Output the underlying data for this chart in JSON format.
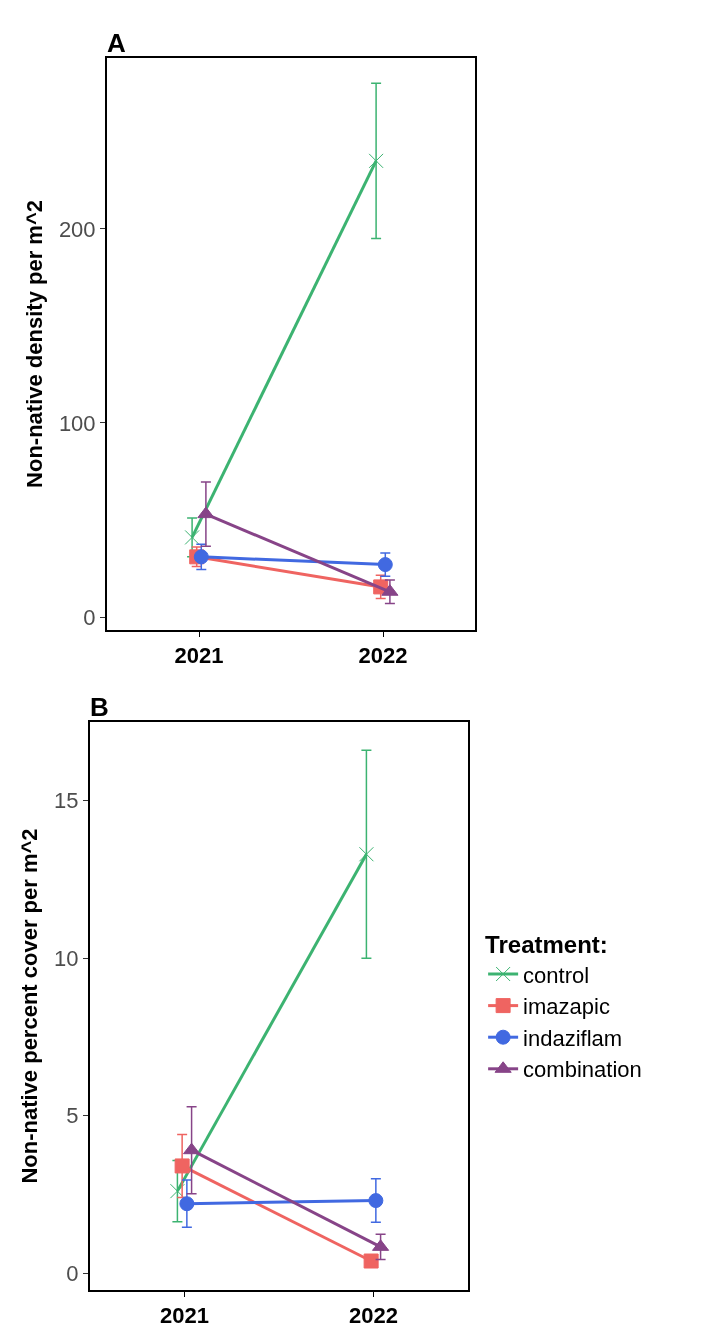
{
  "chart_data": [
    {
      "type": "line",
      "title": "A",
      "ylabel": "Non-native density per m^2",
      "categories": [
        "2021",
        "2022"
      ],
      "ylim": [
        -6.7,
        288
      ],
      "yticks": [
        0,
        100,
        200
      ],
      "legend": false,
      "grid": false,
      "series": [
        {
          "color": "#3cb371",
          "marker": "cross",
          "values": [
            41,
            235
          ],
          "errors": [
            10,
            40
          ]
        },
        {
          "color": "#ef6461",
          "marker": "square",
          "values": [
            31,
            15.5
          ],
          "errors": [
            5,
            6
          ]
        },
        {
          "color": "#4169e1",
          "marker": "circle",
          "values": [
            31,
            27
          ],
          "errors": [
            6.5,
            6
          ]
        },
        {
          "color": "#874488",
          "marker": "triangle",
          "values": [
            53,
            13
          ],
          "errors": [
            16.5,
            6
          ]
        }
      ]
    },
    {
      "type": "line",
      "title": "B",
      "ylabel": "Non-native percent cover per m^2",
      "legend_title": "Treatment:",
      "legend": "right",
      "categories": [
        "2021",
        "2022"
      ],
      "ylim": [
        -0.54,
        17.5
      ],
      "yticks": [
        0,
        5,
        10,
        15
      ],
      "grid": false,
      "series": [
        {
          "name": "control",
          "color": "#3cb371",
          "marker": "cross",
          "values": [
            2.6,
            13.3
          ],
          "errors": [
            0.97,
            3.3
          ]
        },
        {
          "name": "imazapic",
          "color": "#ef6461",
          "marker": "square",
          "values": [
            3.4,
            0.38
          ],
          "errors": [
            1,
            0.05
          ]
        },
        {
          "name": "indaziflam",
          "color": "#4169e1",
          "marker": "circle",
          "values": [
            2.2,
            2.3
          ],
          "errors": [
            0.75,
            0.69
          ]
        },
        {
          "name": "combination",
          "color": "#874488",
          "marker": "triangle",
          "values": [
            3.9,
            0.83
          ],
          "errors": [
            1.38,
            0.4
          ]
        }
      ]
    }
  ]
}
